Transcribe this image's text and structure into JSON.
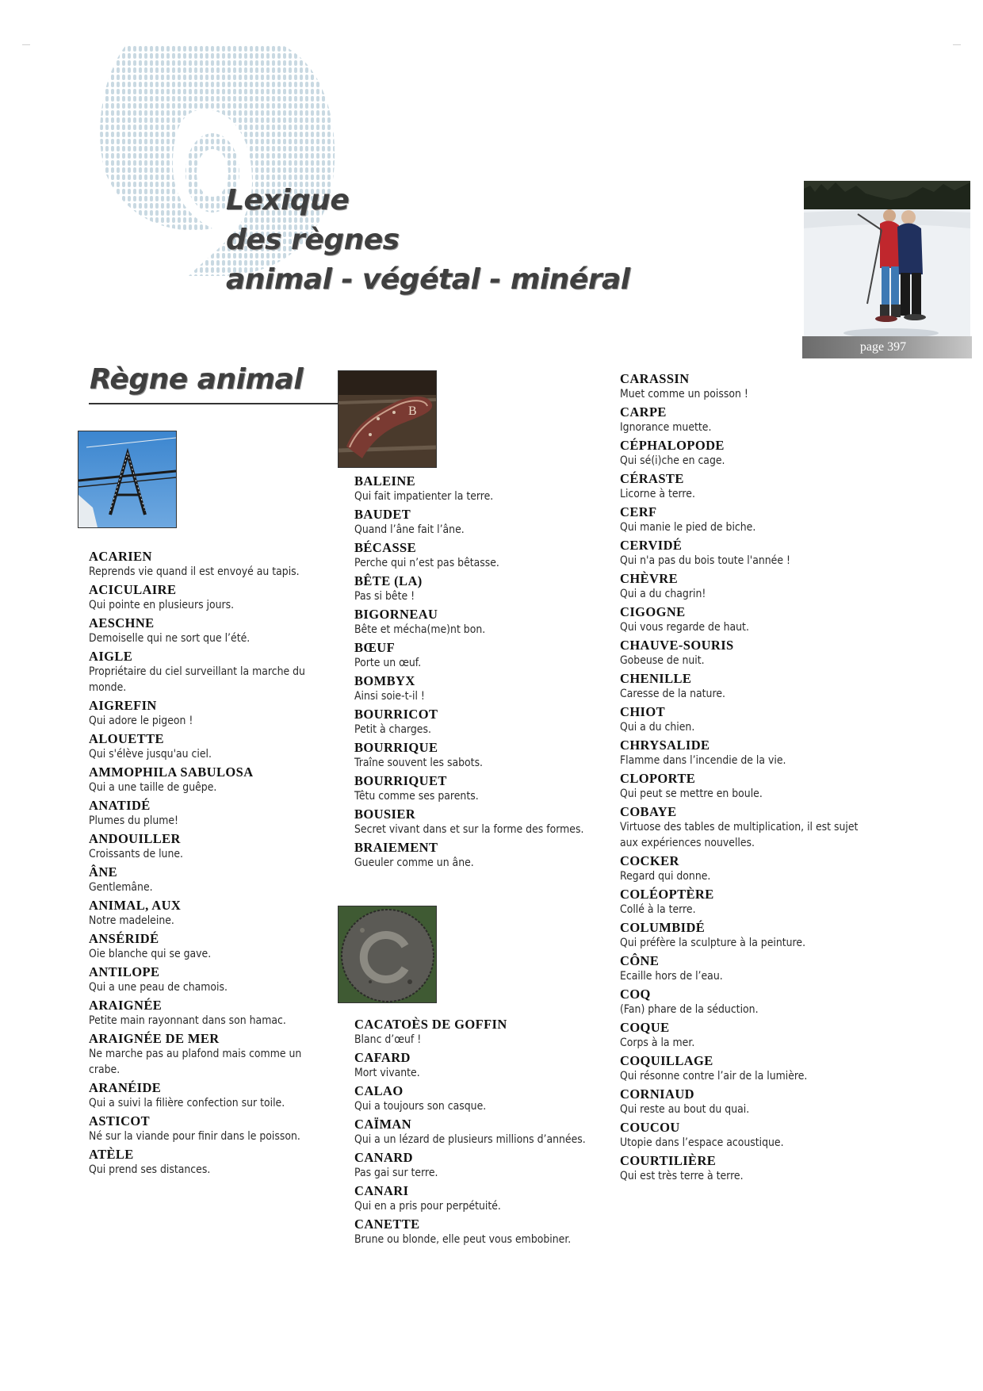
{
  "header": {
    "title_lines": [
      "Lexique",
      "des règnes",
      "animal - végétal - minéral"
    ],
    "page_label": "page 397"
  },
  "section": {
    "title": "Règne animal"
  },
  "columns": {
    "col1": [
      {
        "word": "ACARIEN",
        "def": "Reprends vie quand il est envoyé au tapis."
      },
      {
        "word": "ACICULAIRE",
        "def": "Qui pointe en plusieurs jours."
      },
      {
        "word": "AESCHNE",
        "def": "Demoiselle qui ne sort que l’été."
      },
      {
        "word": "AIGLE",
        "def": "Propriétaire du ciel surveillant la marche du monde."
      },
      {
        "word": "AIGREFIN",
        "def": "Qui adore le pigeon !"
      },
      {
        "word": "ALOUETTE",
        "def": "Qui s'élève jusqu'au ciel."
      },
      {
        "word": "AMMOPHILA SABULOSA",
        "def": "Qui a une taille de guêpe."
      },
      {
        "word": "ANATIDÉ",
        "def": "Plumes du plume!"
      },
      {
        "word": "ANDOUILLER",
        "def": "Croissants de lune."
      },
      {
        "word": "ÂNE",
        "def": "Gentlemâne."
      },
      {
        "word": "ANIMAL, AUX",
        "def": "Notre madeleine."
      },
      {
        "word": "ANSÉRIDÉ",
        "def": "Oie blanche qui se gave."
      },
      {
        "word": "ANTILOPE",
        "def": "Qui a une peau de chamois."
      },
      {
        "word": "ARAIGNÉE",
        "def": "Petite main rayonnant dans son hamac."
      },
      {
        "word": "ARAIGNÉE DE MER",
        "def": "Ne marche pas au plafond mais comme un crabe."
      },
      {
        "word": "ARANÉIDE",
        "def": "Qui a suivi la filière confection sur toile."
      },
      {
        "word": "ASTICOT",
        "def": "Né sur la viande pour finir dans le poisson."
      },
      {
        "word": "ATÈLE",
        "def": "Qui prend ses distances."
      }
    ],
    "col2a": [
      {
        "word": "BALEINE",
        "def": "Qui fait impatienter la terre."
      },
      {
        "word": "BAUDET",
        "def": "Quand l’âne fait l’âne."
      },
      {
        "word": "BÉCASSE",
        "def": "Perche qui n’est pas bêtasse."
      },
      {
        "word": "BÊTE (LA)",
        "def": "Pas si bête !"
      },
      {
        "word": "BIGORNEAU",
        "def": "Bête et mécha(me)nt bon."
      },
      {
        "word": "BŒUF",
        "def": "Porte un œuf."
      },
      {
        "word": "BOMBYX",
        "def": "Ainsi soie-t-il !"
      },
      {
        "word": "BOURRICOT",
        "def": "Petit à charges."
      },
      {
        "word": "BOURRIQUE",
        "def": "Traîne souvent les sabots."
      },
      {
        "word": "BOURRIQUET",
        "def": "Têtu comme ses parents."
      },
      {
        "word": "BOUSIER",
        "def": "Secret vivant dans et sur la forme des formes."
      },
      {
        "word": "BRAIEMENT",
        "def": "Gueuler comme un âne."
      }
    ],
    "col2b": [
      {
        "word": "CACATOÈS DE GOFFIN",
        "def": "Blanc d’œuf !"
      },
      {
        "word": "CAFARD",
        "def": "Mort vivante."
      },
      {
        "word": "CALAO",
        "def": "Qui a toujours son casque."
      },
      {
        "word": "CAÏMAN",
        "def": "Qui a un lézard de plusieurs millions d’années."
      },
      {
        "word": "CANARD",
        "def": "Pas gai sur terre."
      },
      {
        "word": "CANARI",
        "def": "Qui en a pris pour perpétuité."
      },
      {
        "word": "CANETTE",
        "def": "Brune ou blonde, elle peut vous embobiner."
      }
    ],
    "col3": [
      {
        "word": "CARASSIN",
        "def": "Muet comme un poisson !"
      },
      {
        "word": "CARPE",
        "def": "Ignorance muette."
      },
      {
        "word": "CÉPHALOPODE",
        "def": "Qui sé(i)che en cage."
      },
      {
        "word": "CÉRASTE",
        "def": "Licorne à terre."
      },
      {
        "word": "CERF",
        "def": "Qui manie le pied de biche."
      },
      {
        "word": "CERVIDÉ",
        "def": "Qui n'a pas du bois toute l'année !"
      },
      {
        "word": "CHÈVRE",
        "def": "Qui a du chagrin!"
      },
      {
        "word": "CIGOGNE",
        "def": "Qui vous regarde de haut."
      },
      {
        "word": "CHAUVE-SOURIS",
        "def": "Gobeuse de nuit."
      },
      {
        "word": "CHENILLE",
        "def": "Caresse de la nature."
      },
      {
        "word": "CHIOT",
        "def": "Qui a du chien."
      },
      {
        "word": "CHRYSALIDE",
        "def": "Flamme dans l’incendie de la vie."
      },
      {
        "word": "CLOPORTE",
        "def": "Qui peut se mettre en boule."
      },
      {
        "word": "COBAYE",
        "def": "Virtuose des tables de multiplication, il est sujet aux expériences nouvelles."
      },
      {
        "word": "COCKER",
        "def": "Regard qui donne."
      },
      {
        "word": "COLÉOPTÈRE",
        "def": "Collé à la terre."
      },
      {
        "word": "COLUMBIDÉ",
        "def": "Qui préfère la sculpture à la peinture."
      },
      {
        "word": "CÔNE",
        "def": "Ecaille hors de l’eau."
      },
      {
        "word": "COQ",
        "def": "(Fan) phare de la séduction."
      },
      {
        "word": "COQUE",
        "def": "Corps à la mer."
      },
      {
        "word": "COQUILLAGE",
        "def": "Qui résonne contre l’air de la lumière."
      },
      {
        "word": "CORNIAUD",
        "def": "Qui reste au bout du quai."
      },
      {
        "word": "COUCOU",
        "def": "Utopie dans l’espace acoustique."
      },
      {
        "word": "COURTILIÈRE",
        "def": "Qui est très terre à terre."
      }
    ]
  }
}
